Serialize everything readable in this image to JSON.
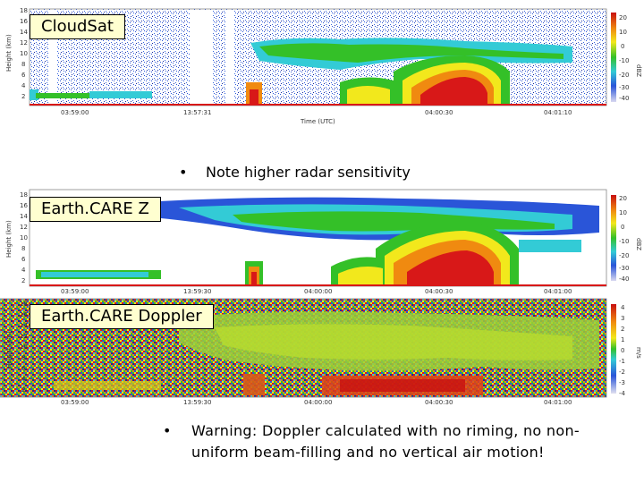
{
  "panels": [
    {
      "label": "CloudSat",
      "x_ticks": [
        "03:59:00",
        "13:57:31",
        "04:00:30",
        "04:01:10"
      ],
      "x_axis_label": "Time (UTC)",
      "y_axis_label": "Height (km)",
      "colorbar_ticks": [
        "20",
        "10",
        "0",
        "-10",
        "-20",
        "-30",
        "-40"
      ],
      "colorbar_unit": "dBZ"
    },
    {
      "label": "Earth.CARE Z",
      "x_ticks": [
        "03:59:00",
        "13:59:30",
        "04:00:00",
        "04:00:30",
        "04:01:00"
      ],
      "y_axis_label": "Height (km)",
      "colorbar_ticks": [
        "20",
        "10",
        "0",
        "-10",
        "-20",
        "-30",
        "-40"
      ],
      "colorbar_unit": "dBZ"
    },
    {
      "label": "Earth.CARE Doppler",
      "x_ticks": [
        "03:59:00",
        "13:59:30",
        "04:00:00",
        "04:00:30",
        "04:01:00"
      ],
      "y_axis_label": "Height (km)",
      "colorbar_ticks": [
        "4",
        "3",
        "2",
        "1",
        "0",
        "-1",
        "-2",
        "-3",
        "-4"
      ],
      "colorbar_unit": "m/s"
    }
  ],
  "bullets": {
    "note": "Note higher radar sensitivity",
    "warning_line1": "Warning: Doppler calculated with no riming, no non-",
    "warning_line2": "uniform beam-filling and no vertical air motion!",
    "marker": "•"
  },
  "colors": {
    "label_bg": "#ffffd0",
    "red": "#d81818",
    "orange": "#f08a10",
    "yellow": "#f2e81c",
    "green": "#34c028",
    "cyan": "#33cbd6",
    "blue": "#2a55d8",
    "navy": "#1a2a9c"
  }
}
